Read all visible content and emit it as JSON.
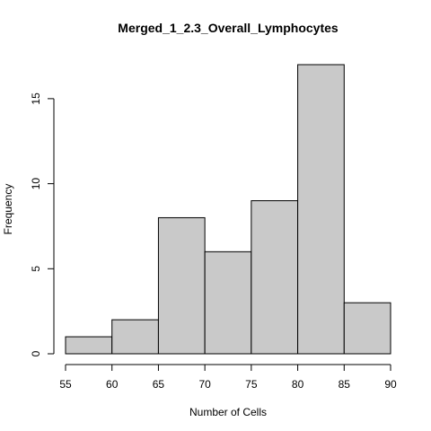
{
  "chart_data": {
    "type": "bar",
    "title": "Merged_1_2.3_Overall_Lymphocytes",
    "xlabel": "Number of Cells",
    "ylabel": "Frequency",
    "bins": [
      {
        "start": 55,
        "end": 60,
        "count": 1
      },
      {
        "start": 60,
        "end": 65,
        "count": 2
      },
      {
        "start": 65,
        "end": 70,
        "count": 8
      },
      {
        "start": 70,
        "end": 75,
        "count": 6
      },
      {
        "start": 75,
        "end": 80,
        "count": 9
      },
      {
        "start": 80,
        "end": 85,
        "count": 17
      },
      {
        "start": 85,
        "end": 90,
        "count": 3
      }
    ],
    "xlim": [
      55,
      90
    ],
    "ylim": [
      0,
      17
    ],
    "x_ticks": [
      55,
      60,
      65,
      70,
      75,
      80,
      85,
      90
    ],
    "y_ticks": [
      0,
      5,
      10,
      15
    ],
    "grid": false,
    "bar_color": "#c9c9c9"
  }
}
